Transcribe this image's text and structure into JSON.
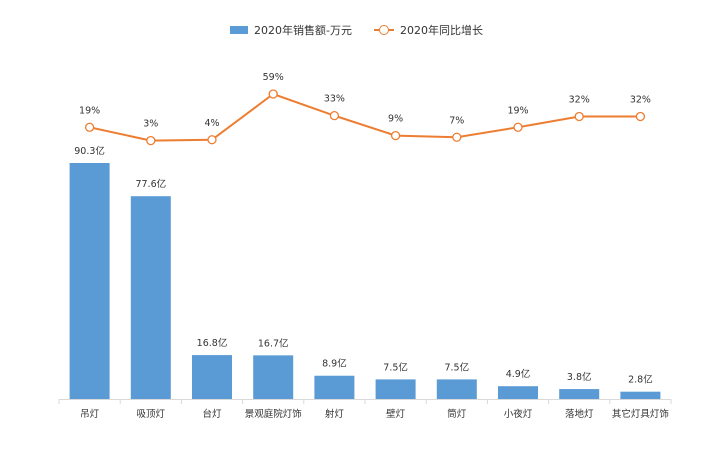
{
  "chart_data": {
    "type": "bar",
    "categories": [
      "吊灯",
      "吸顶灯",
      "台灯",
      "景观庭院灯饰",
      "射灯",
      "壁灯",
      "筒灯",
      "小夜灯",
      "落地灯",
      "其它灯具灯饰"
    ],
    "series": [
      {
        "name": "2020年销售额-万元",
        "type": "bar",
        "values": [
          90.3,
          77.6,
          16.8,
          16.7,
          8.9,
          7.5,
          7.5,
          4.9,
          3.8,
          2.8
        ],
        "labels": [
          "90.3亿",
          "77.6亿",
          "16.8亿",
          "16.7亿",
          "8.9亿",
          "7.5亿",
          "7.5亿",
          "4.9亿",
          "3.8亿",
          "2.8亿"
        ],
        "color": "#5B9BD5"
      },
      {
        "name": "2020年同比增长",
        "type": "line",
        "values": [
          19,
          3,
          4,
          59,
          33,
          9,
          7,
          19,
          32,
          32
        ],
        "labels": [
          "19%",
          "3%",
          "4%",
          "59%",
          "33%",
          "9%",
          "7%",
          "19%",
          "32%",
          "32%"
        ],
        "color": "#ED7D31"
      }
    ],
    "title": "",
    "xlabel": "",
    "ylabel": "",
    "legend_position": "top-center",
    "grid": false
  }
}
